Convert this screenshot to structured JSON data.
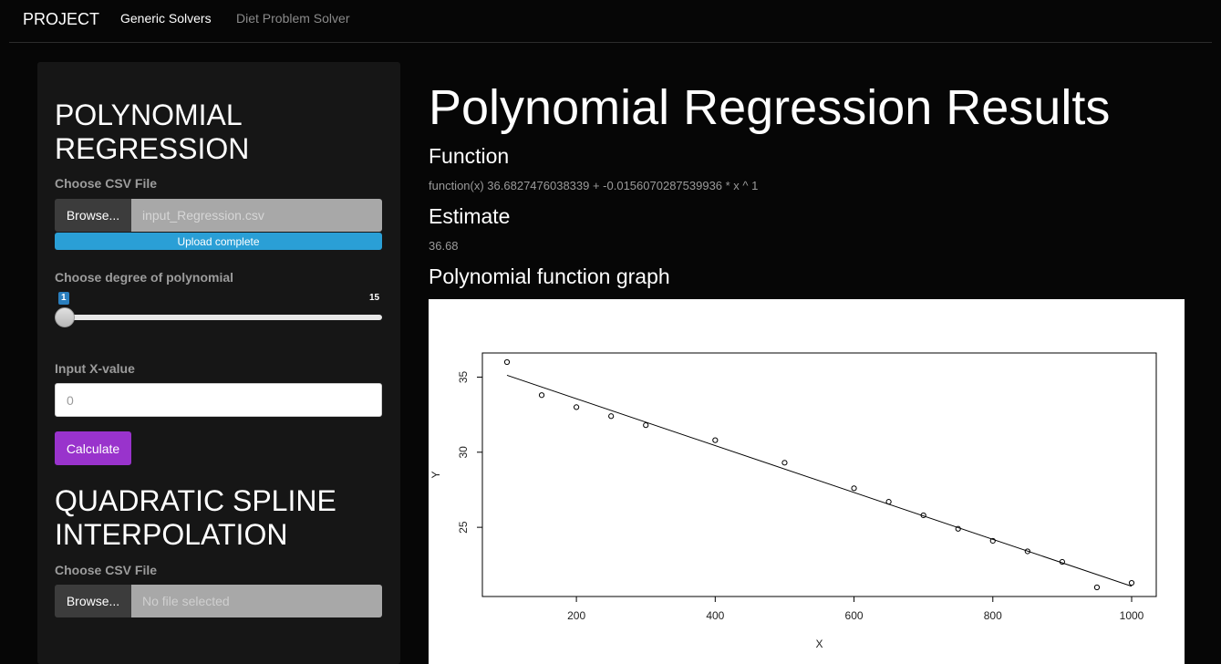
{
  "navbar": {
    "brand": "PROJECT",
    "links": [
      {
        "label": "Generic Solvers",
        "active": true
      },
      {
        "label": "Diet Problem Solver",
        "active": false
      }
    ]
  },
  "sidebar": {
    "poly": {
      "title": "POLYNOMIAL REGRESSION",
      "file_label": "Choose CSV File",
      "browse_label": "Browse...",
      "file_name": "input_Regression.csv",
      "upload_status": "Upload complete",
      "upload_progress_percent": 100,
      "degree_label": "Choose degree of polynomial",
      "slider": {
        "min": "1",
        "max": "15",
        "value": 1
      },
      "x_label": "Input X-value",
      "x_value": "0",
      "calc_label": "Calculate"
    },
    "spline": {
      "title": "QUADRATIC SPLINE INTERPOLATION",
      "file_label": "Choose CSV File",
      "browse_label": "Browse...",
      "file_placeholder": "No file selected"
    }
  },
  "main": {
    "title": "Polynomial Regression Results",
    "function_heading": "Function",
    "function_text": "function(x) 36.6827476038339 + -0.0156070287539936 * x ^ 1",
    "estimate_heading": "Estimate",
    "estimate_value": "36.68",
    "graph_heading": "Polynomial function graph"
  },
  "colors": {
    "accent_purple": "#9933cc",
    "progress_blue": "#2a9fd6",
    "background": "#060606",
    "panel": "#161616"
  },
  "chart_data": {
    "type": "scatter",
    "xlabel": "X",
    "ylabel": "Y",
    "xlim": [
      100,
      1000
    ],
    "ylim": [
      21,
      36
    ],
    "x_ticks": [
      200,
      400,
      600,
      800,
      1000
    ],
    "y_ticks": [
      25,
      30,
      35
    ],
    "grid": false,
    "points": [
      {
        "x": 100,
        "y": 36.0
      },
      {
        "x": 150,
        "y": 33.8
      },
      {
        "x": 200,
        "y": 33.0
      },
      {
        "x": 250,
        "y": 32.4
      },
      {
        "x": 300,
        "y": 31.8
      },
      {
        "x": 400,
        "y": 30.8
      },
      {
        "x": 500,
        "y": 29.3
      },
      {
        "x": 600,
        "y": 27.6
      },
      {
        "x": 650,
        "y": 26.7
      },
      {
        "x": 700,
        "y": 25.8
      },
      {
        "x": 750,
        "y": 24.9
      },
      {
        "x": 800,
        "y": 24.1
      },
      {
        "x": 850,
        "y": 23.4
      },
      {
        "x": 900,
        "y": 22.7
      },
      {
        "x": 950,
        "y": 21.0
      },
      {
        "x": 1000,
        "y": 21.3
      }
    ],
    "fit_line": {
      "intercept": 36.6827476038339,
      "slope": -0.0156070287539936,
      "x_range": [
        100,
        1000
      ]
    }
  }
}
